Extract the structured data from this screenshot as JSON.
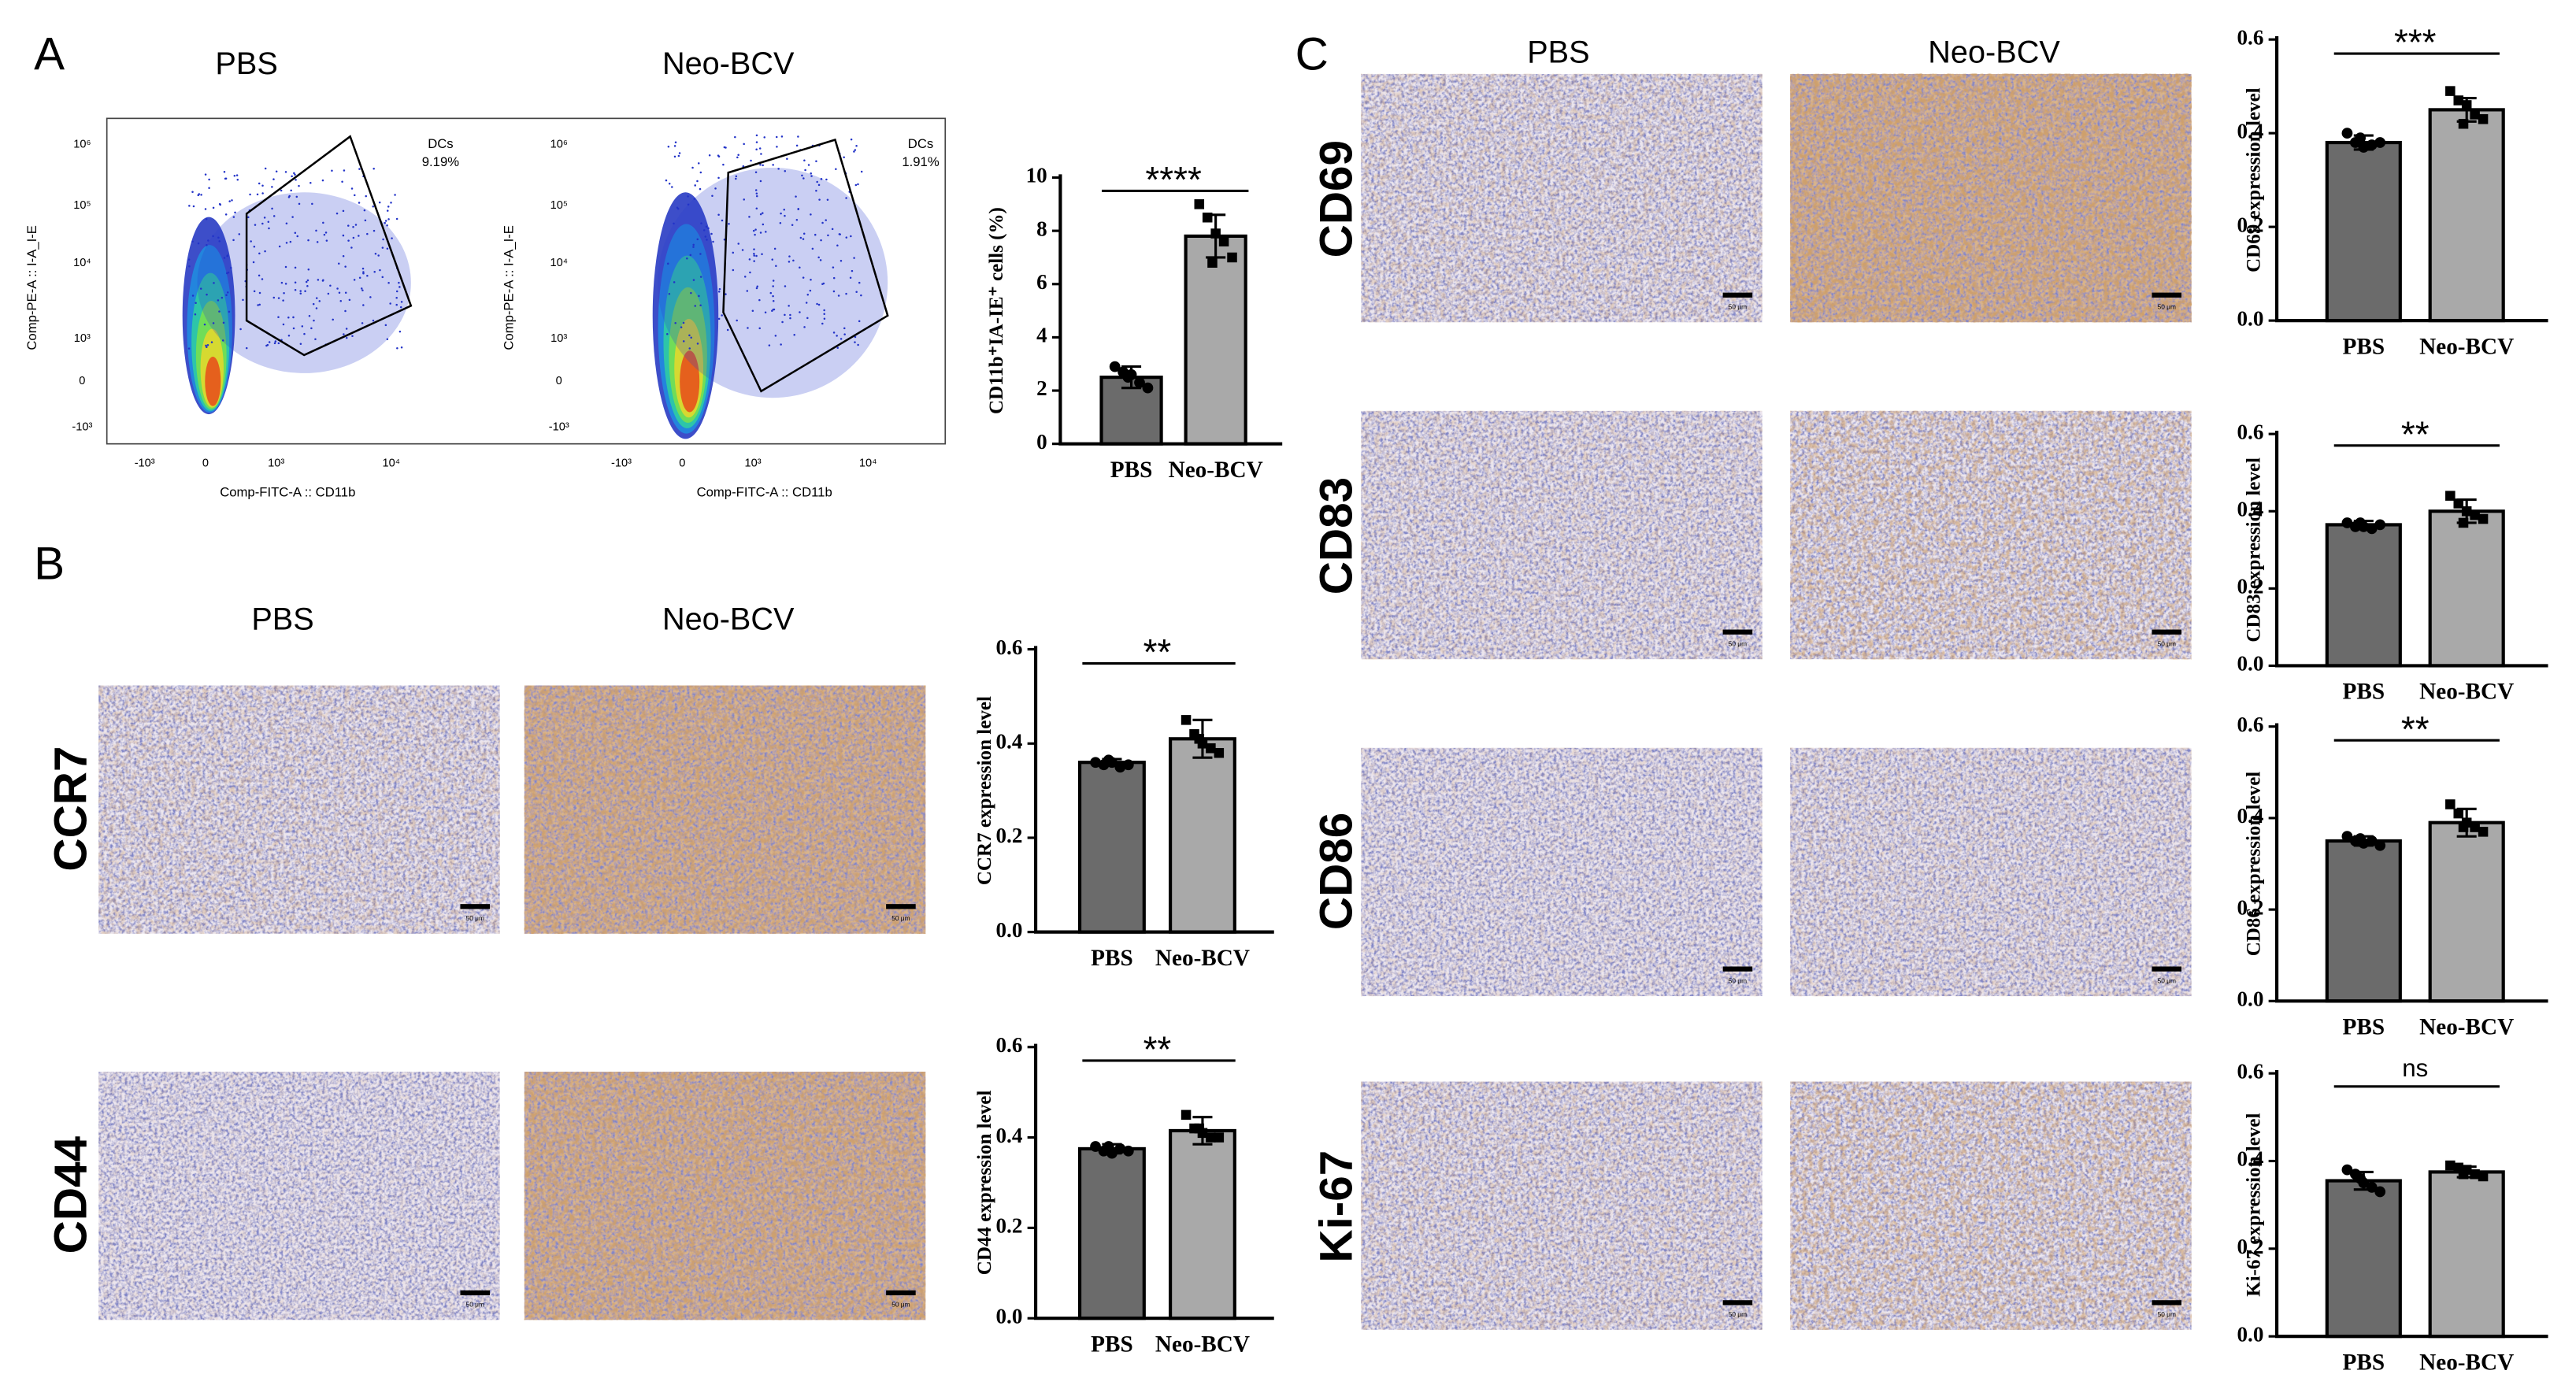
{
  "panel_labels": [
    "A",
    "B",
    "C"
  ],
  "panel_a": {
    "columns": [
      "PBS",
      "Neo-BCV"
    ]
  },
  "flow": [
    {
      "gate": "DCs",
      "percent": "9.19%",
      "x_label": "Comp-FITC-A :: CD11b",
      "y_label": "Comp-PE-A :: I-A_I-E",
      "x_ticks": [
        "-10³",
        "0",
        "10³",
        "10⁴"
      ],
      "y_ticks": [
        "10⁶",
        "10⁵",
        "10⁴",
        "10³",
        "0",
        "-10³"
      ]
    },
    {
      "gate": "DCs",
      "percent": "1.91%",
      "x_label": "Comp-FITC-A :: CD11b",
      "y_label": "Comp-PE-A :: I-A_I-E",
      "x_ticks": [
        "-10³",
        "0",
        "10³",
        "10⁴"
      ],
      "y_ticks": [
        "10⁶",
        "10⁵",
        "10⁴",
        "10³",
        "0",
        "-10³"
      ]
    }
  ],
  "panel_b": {
    "columns": [
      "PBS",
      "Neo-BCV"
    ],
    "rows": [
      "CCR7",
      "CD44"
    ]
  },
  "panel_c": {
    "columns": [
      "PBS",
      "Neo-BCV"
    ],
    "rows": [
      "CD69",
      "CD83",
      "CD86",
      "Ki-67"
    ]
  },
  "scale_bar": "50 μm",
  "chart_data": [
    {
      "type": "bar",
      "ylabel": "CD11b⁺IA-IE⁺ cells (%)",
      "categories": [
        "PBS",
        "Neo-BCV"
      ],
      "values": [
        2.5,
        7.8
      ],
      "errors": [
        0.4,
        0.8
      ],
      "points": [
        [
          2.9,
          2.7,
          2.6,
          2.3,
          2.1,
          2.5
        ],
        [
          9.0,
          8.5,
          7.9,
          7.6,
          7.0,
          6.8
        ]
      ],
      "colors": [
        "#6b6b6b",
        "#a9a9a9"
      ],
      "ylim": [
        0,
        10
      ],
      "yticks": [
        0,
        2,
        4,
        6,
        8,
        10
      ],
      "significance": "****"
    },
    {
      "type": "bar",
      "ylabel": "CCR7 expression level",
      "categories": [
        "PBS",
        "Neo-BCV"
      ],
      "values": [
        0.36,
        0.41
      ],
      "errors": [
        0.007,
        0.04
      ],
      "points": [
        [
          0.36,
          0.355,
          0.36,
          0.35,
          0.355,
          0.365
        ],
        [
          0.45,
          0.42,
          0.4,
          0.39,
          0.38,
          0.41
        ]
      ],
      "colors": [
        "#6b6b6b",
        "#a9a9a9"
      ],
      "ylim": [
        0,
        0.6
      ],
      "yticks": [
        {
          "value": 0,
          "label": "0.0"
        },
        0.2,
        0.4,
        0.6
      ],
      "significance": "**"
    },
    {
      "type": "bar",
      "ylabel": "CD44 expression level",
      "categories": [
        "PBS",
        "Neo-BCV"
      ],
      "values": [
        0.375,
        0.415
      ],
      "errors": [
        0.01,
        0.03
      ],
      "points": [
        [
          0.38,
          0.37,
          0.365,
          0.375,
          0.37,
          0.38
        ],
        [
          0.45,
          0.42,
          0.41,
          0.4,
          0.4,
          0.42
        ]
      ],
      "colors": [
        "#6b6b6b",
        "#a9a9a9"
      ],
      "ylim": [
        0,
        0.6
      ],
      "yticks": [
        {
          "value": 0,
          "label": "0.0"
        },
        0.2,
        0.4,
        0.6
      ],
      "significance": "**"
    },
    {
      "type": "bar",
      "ylabel": "CD69 expression level",
      "categories": [
        "PBS",
        "Neo-BCV"
      ],
      "values": [
        0.38,
        0.45
      ],
      "errors": [
        0.015,
        0.025
      ],
      "points": [
        [
          0.4,
          0.38,
          0.37,
          0.375,
          0.38,
          0.39
        ],
        [
          0.49,
          0.47,
          0.46,
          0.44,
          0.43,
          0.42
        ]
      ],
      "colors": [
        "#6b6b6b",
        "#a9a9a9"
      ],
      "ylim": [
        0,
        0.6
      ],
      "yticks": [
        {
          "value": 0,
          "label": "0.0"
        },
        0.2,
        0.4,
        0.6
      ],
      "significance": "***"
    },
    {
      "type": "bar",
      "ylabel": "CD83 expression level",
      "categories": [
        "PBS",
        "Neo-BCV"
      ],
      "values": [
        0.365,
        0.4
      ],
      "errors": [
        0.01,
        0.03
      ],
      "points": [
        [
          0.37,
          0.36,
          0.36,
          0.355,
          0.365,
          0.37
        ],
        [
          0.44,
          0.42,
          0.4,
          0.39,
          0.38,
          0.37
        ]
      ],
      "colors": [
        "#6b6b6b",
        "#a9a9a9"
      ],
      "ylim": [
        0,
        0.6
      ],
      "yticks": [
        {
          "value": 0,
          "label": "0.0"
        },
        0.2,
        0.4,
        0.6
      ],
      "significance": "**"
    },
    {
      "type": "bar",
      "ylabel": "CD86 expression level",
      "categories": [
        "PBS",
        "Neo-BCV"
      ],
      "values": [
        0.35,
        0.39
      ],
      "errors": [
        0.01,
        0.03
      ],
      "points": [
        [
          0.36,
          0.35,
          0.345,
          0.35,
          0.34,
          0.355
        ],
        [
          0.43,
          0.41,
          0.39,
          0.38,
          0.37,
          0.38
        ]
      ],
      "colors": [
        "#6b6b6b",
        "#a9a9a9"
      ],
      "ylim": [
        0,
        0.6
      ],
      "yticks": [
        {
          "value": 0,
          "label": "0.0"
        },
        0.2,
        0.4,
        0.6
      ],
      "significance": "**"
    },
    {
      "type": "bar",
      "ylabel": "Ki-67 expression level",
      "categories": [
        "PBS",
        "Neo-BCV"
      ],
      "values": [
        0.355,
        0.375
      ],
      "errors": [
        0.02,
        0.012
      ],
      "points": [
        [
          0.38,
          0.37,
          0.35,
          0.34,
          0.33,
          0.36
        ],
        [
          0.39,
          0.385,
          0.38,
          0.37,
          0.365,
          0.37
        ]
      ],
      "colors": [
        "#6b6b6b",
        "#a9a9a9"
      ],
      "ylim": [
        0,
        0.6
      ],
      "yticks": [
        {
          "value": 0,
          "label": "0.0"
        },
        0.2,
        0.4,
        0.6
      ],
      "significance": "ns"
    }
  ]
}
